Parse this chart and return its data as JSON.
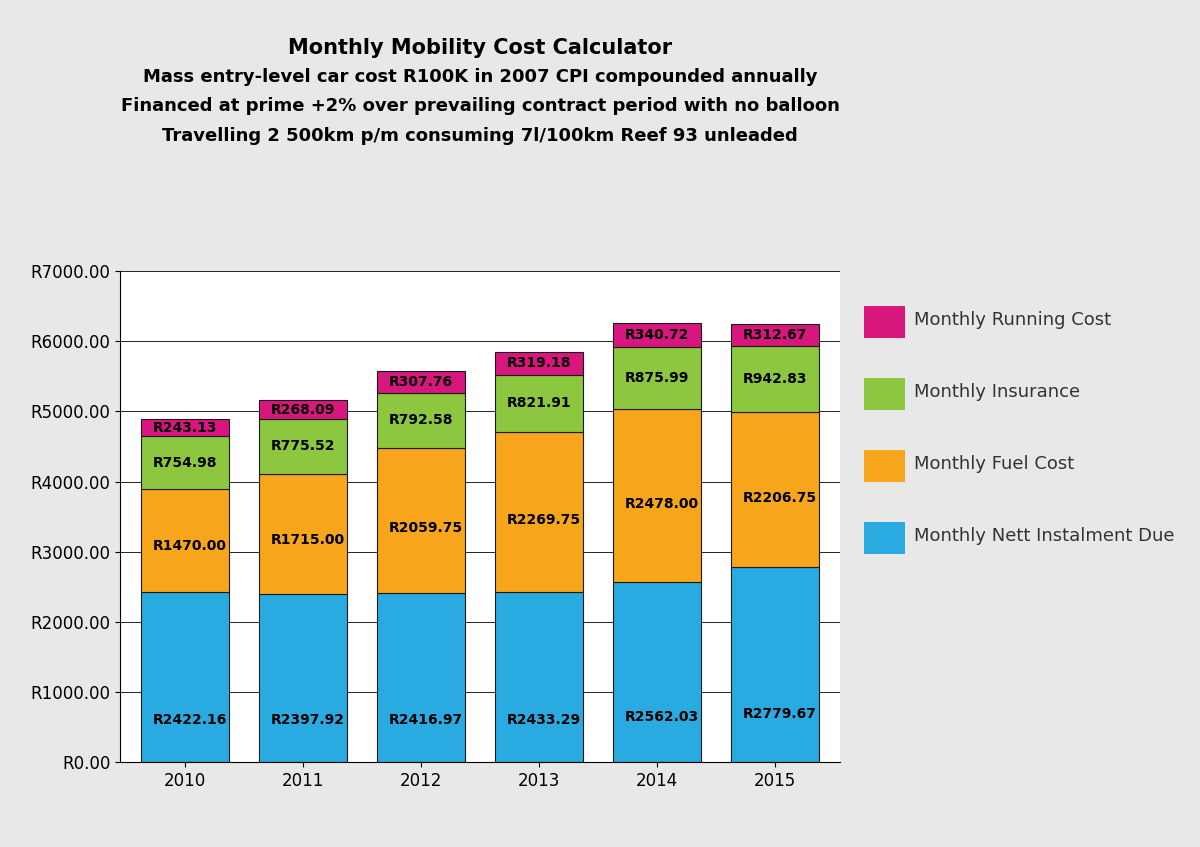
{
  "title_lines": [
    "Monthly Mobility Cost Calculator",
    "Mass entry-level car cost R100K in 2007 CPI compounded annually",
    "Financed at prime +2% over prevailing contract period with no balloon",
    "Travelling 2 500km p/m consuming 7l/100km Reef 93 unleaded"
  ],
  "years": [
    "2010",
    "2011",
    "2012",
    "2013",
    "2014",
    "2015"
  ],
  "instalment": [
    2422.16,
    2397.92,
    2416.97,
    2433.29,
    2562.03,
    2779.67
  ],
  "fuel": [
    1470.0,
    1715.0,
    2059.75,
    2269.75,
    2478.0,
    2206.75
  ],
  "insurance": [
    754.98,
    775.52,
    792.58,
    821.91,
    875.99,
    942.83
  ],
  "running": [
    243.13,
    268.09,
    307.76,
    319.18,
    340.72,
    312.67
  ],
  "color_instalment": "#29ABE2",
  "color_fuel": "#F7A51B",
  "color_insurance": "#8DC63F",
  "color_running": "#D8177E",
  "label_instalment": "Monthly Nett Instalment Due",
  "label_fuel": "Monthly Fuel Cost",
  "label_insurance": "Monthly Insurance",
  "label_running": "Monthly Running Cost",
  "ylim": [
    0,
    7000
  ],
  "yticks": [
    0,
    1000,
    2000,
    3000,
    4000,
    5000,
    6000,
    7000
  ],
  "ytick_labels": [
    "R0.00",
    "R1000.00",
    "R2000.00",
    "R3000.00",
    "R4000.00",
    "R5000.00",
    "R6000.00",
    "R7000.00"
  ],
  "background_color": "#E8E8E8",
  "plot_bg_color": "#FFFFFF",
  "bar_edge_color": "#1a1a1a",
  "title_fontsize": 15,
  "subtitle_fontsize": 13,
  "label_fontsize": 10,
  "legend_fontsize": 13,
  "tick_fontsize": 12,
  "bar_width": 0.75
}
